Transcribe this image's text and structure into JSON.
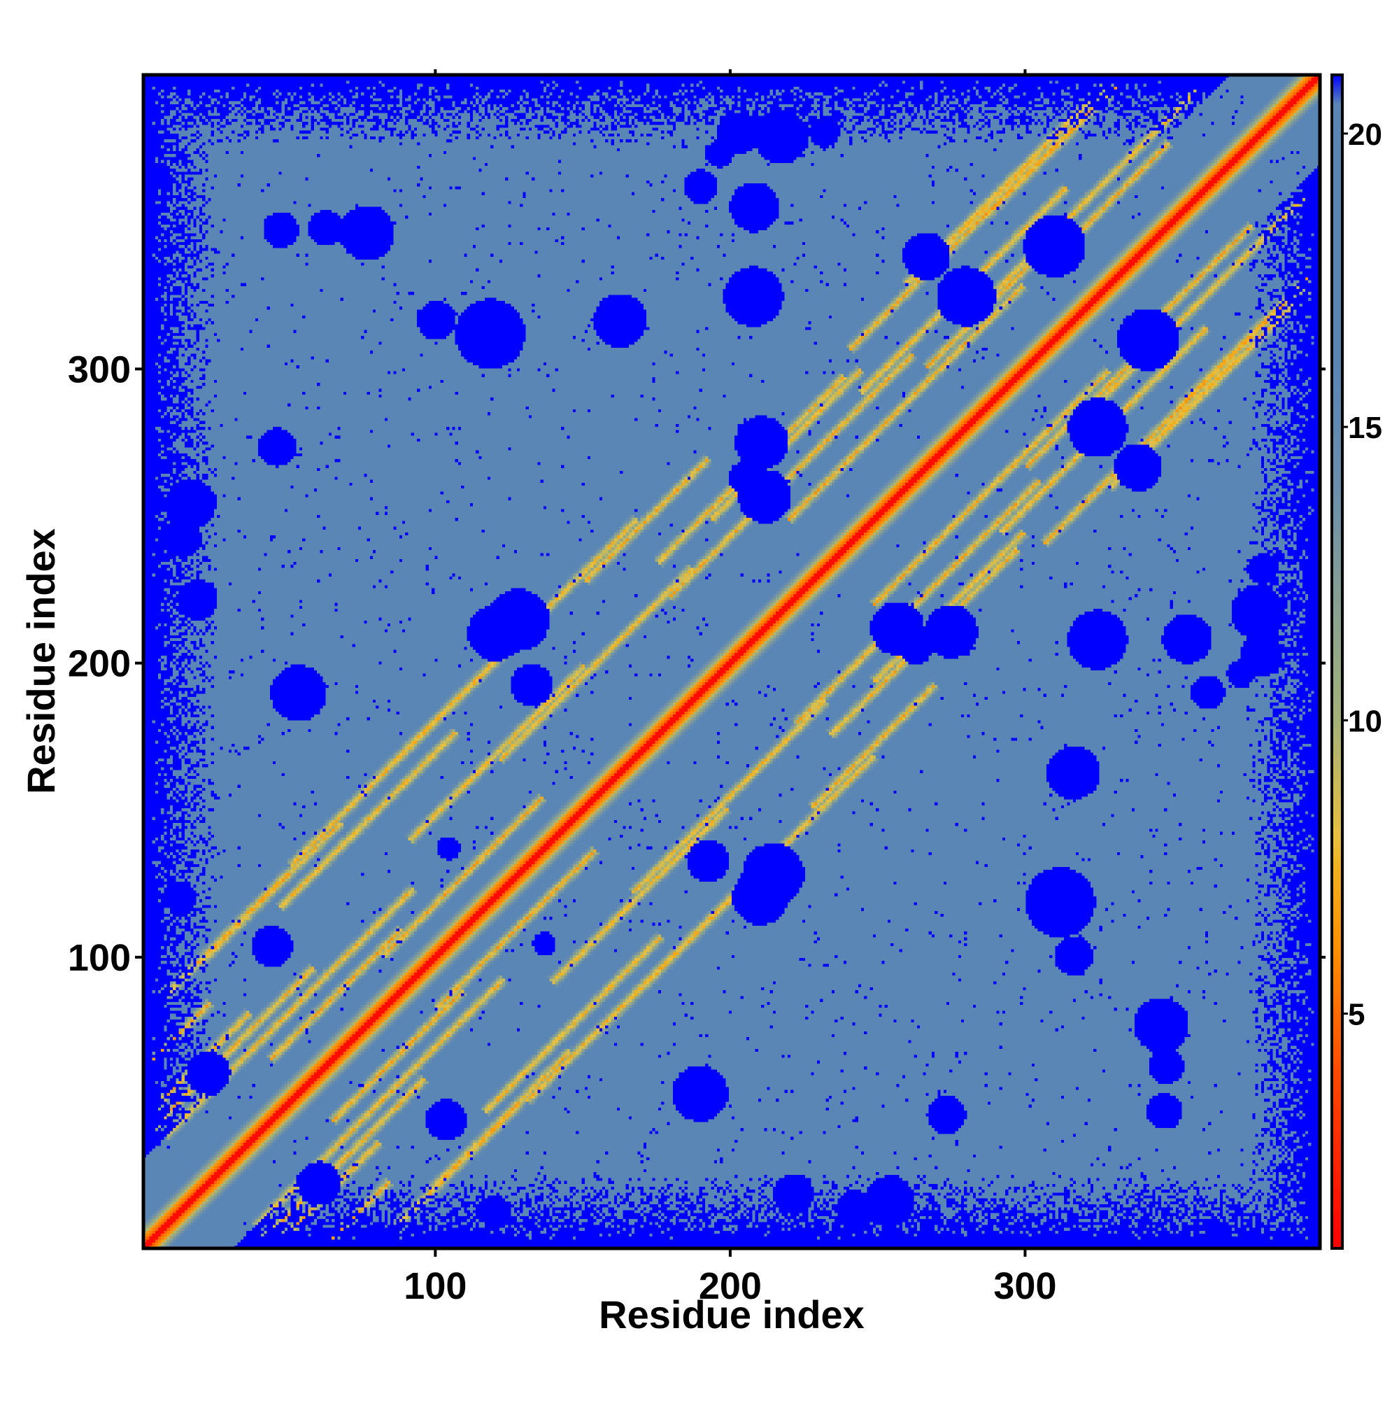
{
  "chart_data": {
    "type": "heatmap",
    "title": "",
    "xlabel": "Residue index",
    "ylabel": "Residue index",
    "xlim": [
      1,
      400
    ],
    "ylim": [
      1,
      400
    ],
    "x_ticks": [
      "100",
      "200",
      "300"
    ],
    "y_ticks": [
      "100",
      "200",
      "300"
    ],
    "colorbar": {
      "ticks": [
        "5",
        "10",
        "15",
        "20"
      ],
      "range": [
        1,
        21
      ],
      "stops": [
        {
          "value": 1,
          "color": "#ff0000"
        },
        {
          "value": 4,
          "color": "#ff4a00"
        },
        {
          "value": 6,
          "color": "#ff8c00"
        },
        {
          "value": 7.5,
          "color": "#f0b020"
        },
        {
          "value": 8,
          "color": "#e8c040"
        },
        {
          "value": 10,
          "color": "#a4b278"
        },
        {
          "value": 14,
          "color": "#6a8eac"
        },
        {
          "value": 16,
          "color": "#5a86b6"
        },
        {
          "value": 20.5,
          "color": "#5a86b6"
        },
        {
          "value": 21,
          "color": "#0000ff"
        }
      ]
    },
    "values_description_free": true,
    "grid": false,
    "legend": "colorbar-right",
    "residue_count": 400,
    "values_unit": "distance",
    "colors": {
      "near": "#ff0000",
      "mid": "#ff8c00",
      "band": "#e0c050",
      "background": "#5a86b6",
      "far": "#0000ff"
    }
  }
}
